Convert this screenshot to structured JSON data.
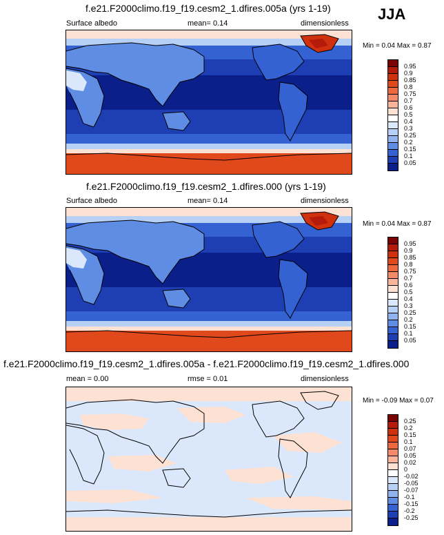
{
  "season": "JJA",
  "panels": [
    {
      "id": "p1",
      "title": "f.e21.F2000climo.f19_f19.cesm2_1.dfires.005a (yrs 1-19)",
      "left_label": "Surface albedo",
      "center_label": "mean=  0.14",
      "right_label": "dimensionless",
      "minmax": "Min =  0.04 Max =  0.87",
      "colorbar": {
        "labels": [
          "0.95",
          "0.9",
          "0.85",
          "0.8",
          "0.75",
          "0.7",
          "0.6",
          "0.5",
          "0.4",
          "0.3",
          "0.25",
          "0.2",
          "0.15",
          "0.1",
          "0.05"
        ],
        "colors": [
          "#7a0403",
          "#b51b0a",
          "#cf300e",
          "#e0491b",
          "#ee6a3e",
          "#f48a67",
          "#f9b49a",
          "#fde1d3",
          "#ffffff",
          "#dbe8fb",
          "#b6d0f6",
          "#8fb3ef",
          "#5f8de3",
          "#3462d3",
          "#1e3fb4",
          "#0a1f8a"
        ]
      }
    },
    {
      "id": "p2",
      "title": "f.e21.F2000climo.f19_f19.cesm2_1.dfires.000 (yrs 1-19)",
      "left_label": "Surface albedo",
      "center_label": "mean=  0.14",
      "right_label": "dimensionless",
      "minmax": "Min =  0.04 Max =  0.87",
      "colorbar": {
        "labels": [
          "0.95",
          "0.9",
          "0.85",
          "0.8",
          "0.75",
          "0.7",
          "0.6",
          "0.5",
          "0.4",
          "0.3",
          "0.25",
          "0.2",
          "0.15",
          "0.1",
          "0.05"
        ],
        "colors": [
          "#7a0403",
          "#b51b0a",
          "#cf300e",
          "#e0491b",
          "#ee6a3e",
          "#f48a67",
          "#f9b49a",
          "#fde1d3",
          "#ffffff",
          "#dbe8fb",
          "#b6d0f6",
          "#8fb3ef",
          "#5f8de3",
          "#3462d3",
          "#1e3fb4",
          "#0a1f8a"
        ]
      }
    },
    {
      "id": "p3",
      "title": "f.e21.F2000climo.f19_f19.cesm2_1.dfires.005a - f.e21.F2000climo.f19_f19.cesm2_1.dfires.000",
      "left_label": "mean =  0.00",
      "center_label": "rmse =  0.01",
      "right_label": "dimensionless",
      "minmax": "Min = -0.09 Max =  0.07",
      "colorbar": {
        "labels": [
          "0.25",
          "0.2",
          "0.15",
          "0.1",
          "0.07",
          "0.05",
          "0.02",
          "0",
          "-0.02",
          "-0.05",
          "-0.07",
          "-0.1",
          "-0.15",
          "-0.2",
          "-0.25"
        ],
        "colors": [
          "#7a0403",
          "#b51b0a",
          "#cf300e",
          "#e0491b",
          "#ee6a3e",
          "#f48a67",
          "#f9b49a",
          "#fde1d3",
          "#ffffff",
          "#dbe8fb",
          "#b6d0f6",
          "#8fb3ef",
          "#5f8de3",
          "#3462d3",
          "#1e3fb4",
          "#0a1f8a"
        ]
      }
    }
  ],
  "chart_data": [
    {
      "type": "heatmap",
      "title": "f.e21.F2000climo.f19_f19.cesm2_1.dfires.005a (yrs 1-19)",
      "variable": "Surface albedo",
      "units": "dimensionless",
      "mean": 0.14,
      "min": 0.04,
      "max": 0.87,
      "levels": [
        0.05,
        0.1,
        0.15,
        0.2,
        0.25,
        0.3,
        0.4,
        0.5,
        0.6,
        0.7,
        0.75,
        0.8,
        0.85,
        0.9,
        0.95
      ]
    },
    {
      "type": "heatmap",
      "title": "f.e21.F2000climo.f19_f19.cesm2_1.dfires.000 (yrs 1-19)",
      "variable": "Surface albedo",
      "units": "dimensionless",
      "mean": 0.14,
      "min": 0.04,
      "max": 0.87,
      "levels": [
        0.05,
        0.1,
        0.15,
        0.2,
        0.25,
        0.3,
        0.4,
        0.5,
        0.6,
        0.7,
        0.75,
        0.8,
        0.85,
        0.9,
        0.95
      ]
    },
    {
      "type": "heatmap",
      "title": "f.e21.F2000climo.f19_f19.cesm2_1.dfires.005a - f.e21.F2000climo.f19_f19.cesm2_1.dfires.000",
      "units": "dimensionless",
      "mean": 0.0,
      "rmse": 0.01,
      "min": -0.09,
      "max": 0.07,
      "levels": [
        -0.25,
        -0.2,
        -0.15,
        -0.1,
        -0.07,
        -0.05,
        -0.02,
        0,
        0.02,
        0.05,
        0.07,
        0.1,
        0.15,
        0.2,
        0.25
      ]
    }
  ]
}
